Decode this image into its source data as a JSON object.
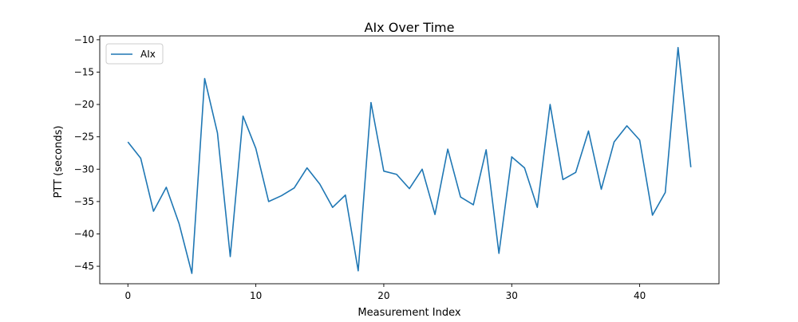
{
  "chart_data": {
    "type": "line",
    "title": "AIx Over Time",
    "xlabel": "Measurement Index",
    "ylabel": "PTT (seconds)",
    "xlim": [
      -2.2,
      46.2
    ],
    "ylim": [
      -47.7,
      -9.4
    ],
    "xticks": [
      0,
      10,
      20,
      30,
      40
    ],
    "yticks": [
      -45,
      -40,
      -35,
      -30,
      -25,
      -20,
      -15,
      -10
    ],
    "grid": false,
    "legend_position": "top-left",
    "series": [
      {
        "name": "AIx",
        "color": "#1f77b4",
        "x": [
          0,
          1,
          2,
          3,
          4,
          5,
          6,
          7,
          8,
          9,
          10,
          11,
          12,
          13,
          14,
          15,
          16,
          17,
          18,
          19,
          20,
          21,
          22,
          23,
          24,
          25,
          26,
          27,
          28,
          29,
          30,
          31,
          32,
          33,
          34,
          35,
          36,
          37,
          38,
          39,
          40,
          41,
          42,
          43,
          44
        ],
        "values": [
          -25.8,
          -28.3,
          -36.5,
          -32.8,
          -38.4,
          -46.1,
          -16.0,
          -24.4,
          -43.5,
          -21.8,
          -26.8,
          -35.0,
          -34.1,
          -32.9,
          -29.8,
          -32.3,
          -35.9,
          -34.0,
          -45.7,
          -19.7,
          -30.3,
          -30.8,
          -33.0,
          -30.0,
          -37.0,
          -26.9,
          -34.3,
          -35.5,
          -27.0,
          -43.0,
          -28.1,
          -29.8,
          -35.9,
          -20.0,
          -31.6,
          -30.5,
          -24.1,
          -33.1,
          -25.8,
          -23.3,
          -25.5,
          -37.1,
          -33.6,
          -11.2,
          -29.7
        ]
      }
    ]
  }
}
